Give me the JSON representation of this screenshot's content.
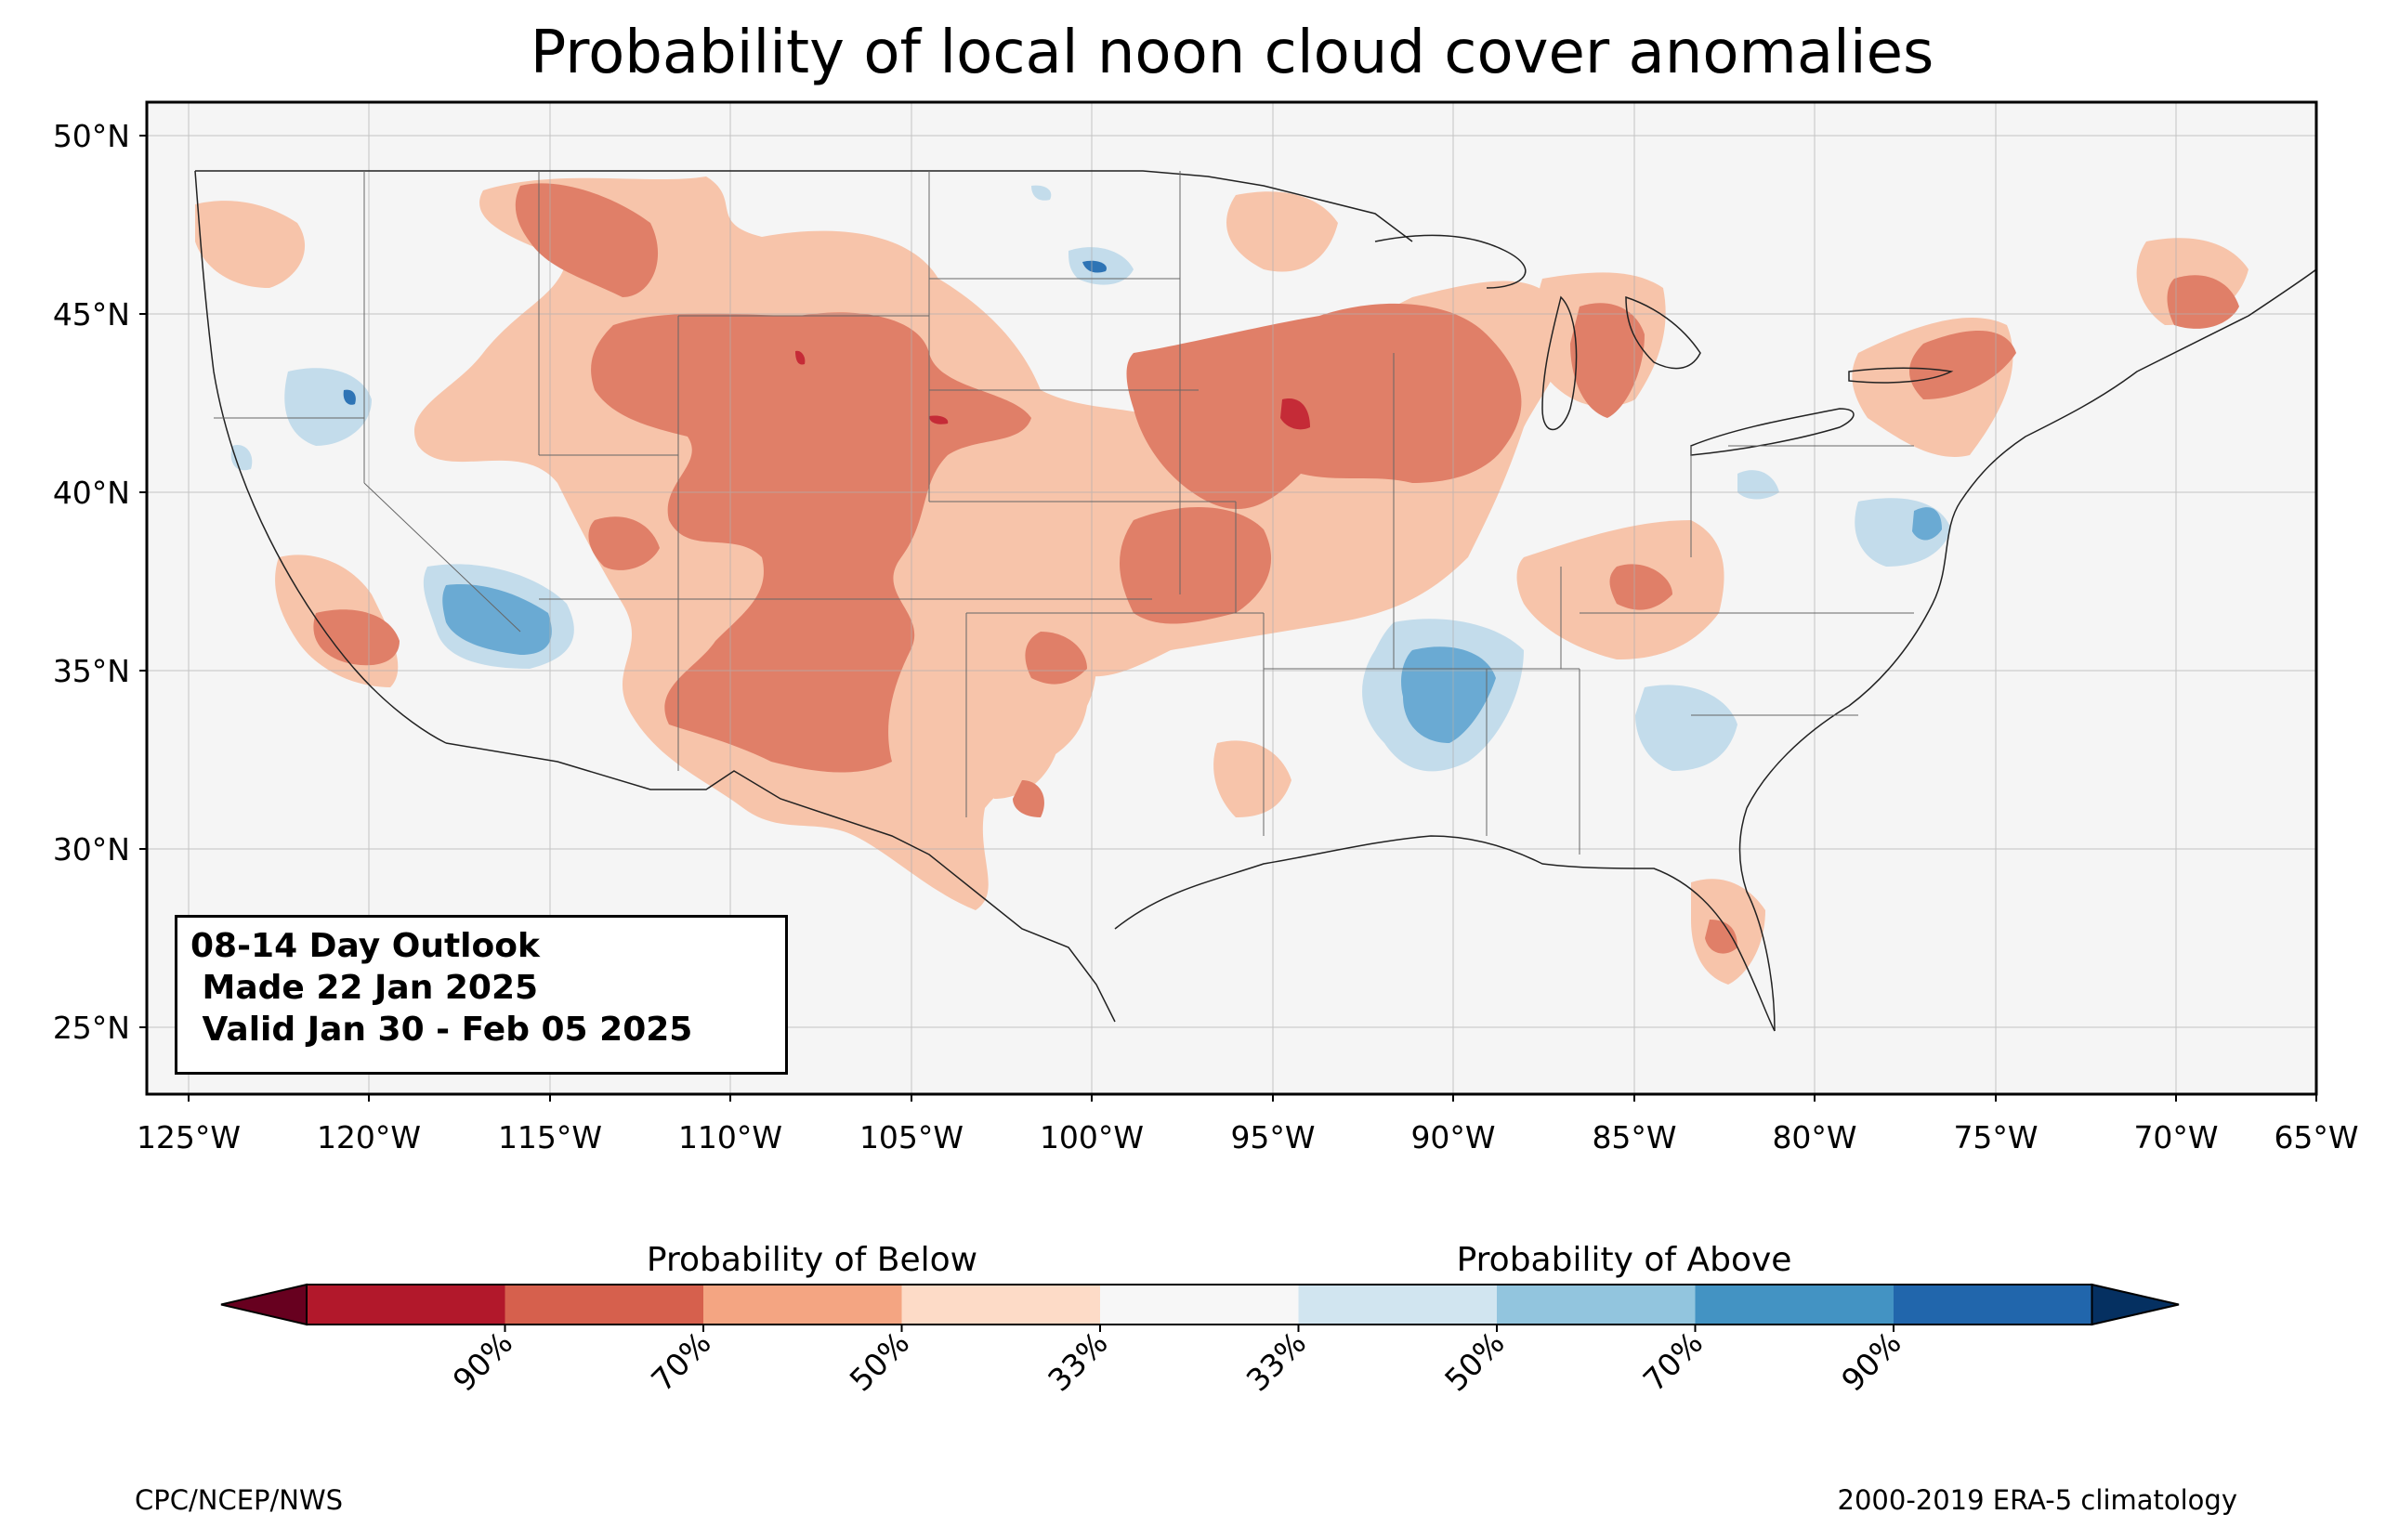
{
  "title": "Probability of local noon cloud cover anomalies",
  "outlook": {
    "line1": "08-14 Day Outlook",
    "line2": " Made 22 Jan 2025",
    "line3": " Valid Jan 30 - Feb 05 2025"
  },
  "lat_ticks": [
    "50°N",
    "45°N",
    "40°N",
    "35°N",
    "30°N",
    "25°N"
  ],
  "lon_ticks": [
    "125°W",
    "120°W",
    "115°W",
    "110°W",
    "105°W",
    "100°W",
    "95°W",
    "90°W",
    "85°W",
    "80°W",
    "75°W",
    "70°W",
    "65°W"
  ],
  "colorbar": {
    "below_label": "Probability of Below",
    "above_label": "Probability of Above",
    "tick_labels": [
      "90%",
      "70%",
      "50%",
      "33%",
      "33%",
      "50%",
      "70%",
      "90%"
    ],
    "colors": [
      "#67001f",
      "#b2182b",
      "#d6604d",
      "#f4a582",
      "#fddbc7",
      "#f7f7f7",
      "#d1e5f0",
      "#92c5de",
      "#4393c3",
      "#2166ac",
      "#053061"
    ]
  },
  "footer": {
    "left": "CPC/NCEP/NWS",
    "right": "2000-2019 ERA-5 climatology"
  },
  "map_colors": {
    "background": "#f5f5f5",
    "below_33": "#f7c4aa",
    "below_50": "#e07f68",
    "below_70": "#c52b37",
    "above_33": "#c3dceb",
    "above_50": "#6aaad3",
    "above_70": "#2e74b5"
  }
}
